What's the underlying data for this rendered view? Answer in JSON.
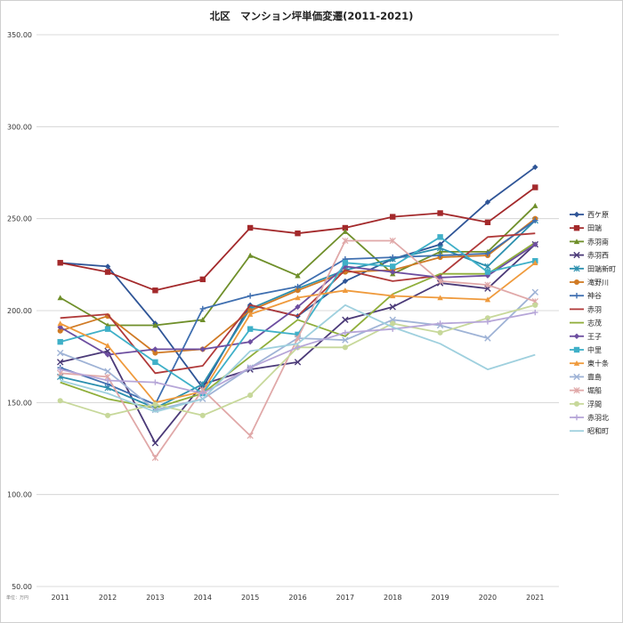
{
  "chart_data": {
    "type": "line",
    "title": "北区　マンション坪単価変遷(2011-2021)",
    "unit_note": "単位：万円",
    "xlabel": "",
    "ylabel": "",
    "ylim": [
      50,
      350
    ],
    "y_ticks": [
      "50.00",
      "100.00",
      "150.00",
      "200.00",
      "250.00",
      "300.00",
      "350.00"
    ],
    "categories": [
      "2011",
      "2012",
      "2013",
      "2014",
      "2015",
      "2016",
      "2017",
      "2018",
      "2019",
      "2020",
      "2021"
    ],
    "grid": true,
    "legend_position": "right",
    "series": [
      {
        "name": "西ケ原",
        "color": "#2f5597",
        "marker": "diamond",
        "values": [
          226,
          224,
          193,
          158,
          203,
          197,
          216,
          228,
          236,
          259,
          278
        ]
      },
      {
        "name": "田端",
        "color": "#a3292b",
        "marker": "square",
        "values": [
          226,
          221,
          211,
          217,
          245,
          242,
          245,
          251,
          253,
          248,
          267
        ]
      },
      {
        "name": "赤羽南",
        "color": "#6f8f2a",
        "marker": "triangle",
        "values": [
          207,
          192,
          192,
          195,
          230,
          219,
          243,
          220,
          232,
          232,
          257
        ]
      },
      {
        "name": "赤羽西",
        "color": "#4b3a78",
        "marker": "x",
        "values": [
          172,
          178,
          128,
          160,
          168,
          172,
          195,
          202,
          215,
          212,
          236
        ]
      },
      {
        "name": "田端新町",
        "color": "#2b8fae",
        "marker": "star",
        "values": [
          164,
          158,
          147,
          160,
          201,
          212,
          222,
          228,
          234,
          224,
          249
        ]
      },
      {
        "name": "滝野川",
        "color": "#d07a24",
        "marker": "circle",
        "values": [
          189,
          197,
          177,
          179,
          200,
          211,
          221,
          222,
          229,
          230,
          250
        ]
      },
      {
        "name": "神谷",
        "color": "#3f6fb0",
        "marker": "plus",
        "values": [
          169,
          160,
          149,
          201,
          208,
          213,
          228,
          229,
          230,
          231,
          249
        ]
      },
      {
        "name": "赤羽",
        "color": "#b03a3a",
        "marker": "none",
        "values": [
          196,
          198,
          166,
          170,
          203,
          197,
          222,
          216,
          219,
          240,
          242
        ]
      },
      {
        "name": "志茂",
        "color": "#8fae3a",
        "marker": "none",
        "values": [
          161,
          152,
          147,
          155,
          175,
          195,
          186,
          209,
          220,
          220,
          237
        ]
      },
      {
        "name": "王子",
        "color": "#6d4ea0",
        "marker": "diamond",
        "values": [
          191,
          176,
          179,
          179,
          183,
          202,
          224,
          221,
          218,
          219,
          236
        ]
      },
      {
        "name": "中里",
        "color": "#3fb0c8",
        "marker": "square",
        "values": [
          183,
          190,
          172,
          155,
          190,
          187,
          226,
          224,
          240,
          221,
          227
        ]
      },
      {
        "name": "東十条",
        "color": "#ef9a3c",
        "marker": "triangle",
        "values": [
          193,
          181,
          150,
          156,
          198,
          207,
          211,
          208,
          207,
          206,
          226
        ]
      },
      {
        "name": "豊島",
        "color": "#9fb3d6",
        "marker": "x",
        "values": [
          177,
          167,
          146,
          152,
          169,
          185,
          184,
          195,
          192,
          185,
          210
        ]
      },
      {
        "name": "堀船",
        "color": "#e0a8a8",
        "marker": "star",
        "values": [
          166,
          164,
          120,
          157,
          132,
          185,
          238,
          238,
          216,
          214,
          205
        ]
      },
      {
        "name": "浮間",
        "color": "#c7d89a",
        "marker": "circle",
        "values": [
          151,
          143,
          149,
          143,
          154,
          180,
          180,
          193,
          188,
          196,
          203
        ]
      },
      {
        "name": "赤羽北",
        "color": "#b6a6d8",
        "marker": "plus",
        "values": [
          168,
          162,
          161,
          155,
          169,
          180,
          188,
          190,
          193,
          194,
          199
        ]
      },
      {
        "name": "昭和町",
        "color": "#9fd0de",
        "marker": "none",
        "values": [
          162,
          155,
          145,
          152,
          178,
          182,
          203,
          191,
          182,
          168,
          176
        ]
      }
    ]
  }
}
